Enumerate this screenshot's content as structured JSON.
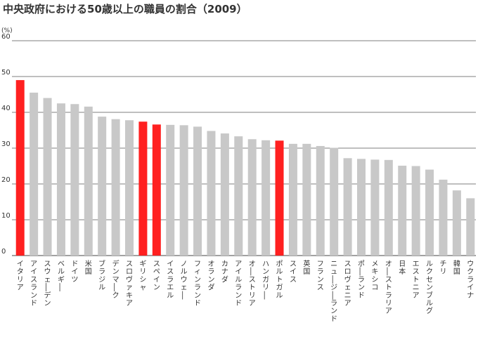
{
  "chart_data": {
    "type": "bar",
    "title": "中央政府における50歳以上の職員の割合（2009）",
    "ylabel": "(%)",
    "xlabel": "",
    "ylim": [
      0,
      60
    ],
    "yticks": [
      0,
      10,
      20,
      30,
      40,
      50,
      60
    ],
    "grid": true,
    "highlight_color": "#ff2020",
    "default_color": "#c8c8c8",
    "categories": [
      "イタリア",
      "アイスランド",
      "スウェーデン",
      "ベルギー",
      "ドイツ",
      "米国",
      "ブラジル",
      "デンマーク",
      "スロヴァキア",
      "ギリシャ",
      "スペイン",
      "イスラエル",
      "ノルウェー",
      "フィンランド",
      "オランダ",
      "カナダ",
      "アイルランド",
      "オーストリア",
      "ハンガリー",
      "ポルトガル",
      "スイス",
      "英国",
      "フランス",
      "ニュージーランド",
      "スロヴェニア",
      "ポーランド",
      "メキシコ",
      "オーストラリア",
      "日本",
      "エストニア",
      "ルクセンブルグ",
      "チリ",
      "韓国",
      "ウクライナ"
    ],
    "values": [
      49.0,
      45.5,
      44.0,
      42.5,
      42.3,
      41.6,
      38.8,
      38.1,
      37.8,
      37.4,
      36.6,
      36.5,
      36.4,
      36.0,
      34.8,
      34.1,
      33.3,
      32.5,
      32.2,
      32.1,
      31.2,
      31.2,
      30.6,
      30.1,
      27.2,
      27.0,
      26.8,
      26.7,
      25.1,
      25.0,
      24.0,
      21.2,
      18.2,
      16.0
    ],
    "highlighted": [
      "イタリア",
      "ギリシャ",
      "スペイン",
      "ポルトガル"
    ]
  }
}
